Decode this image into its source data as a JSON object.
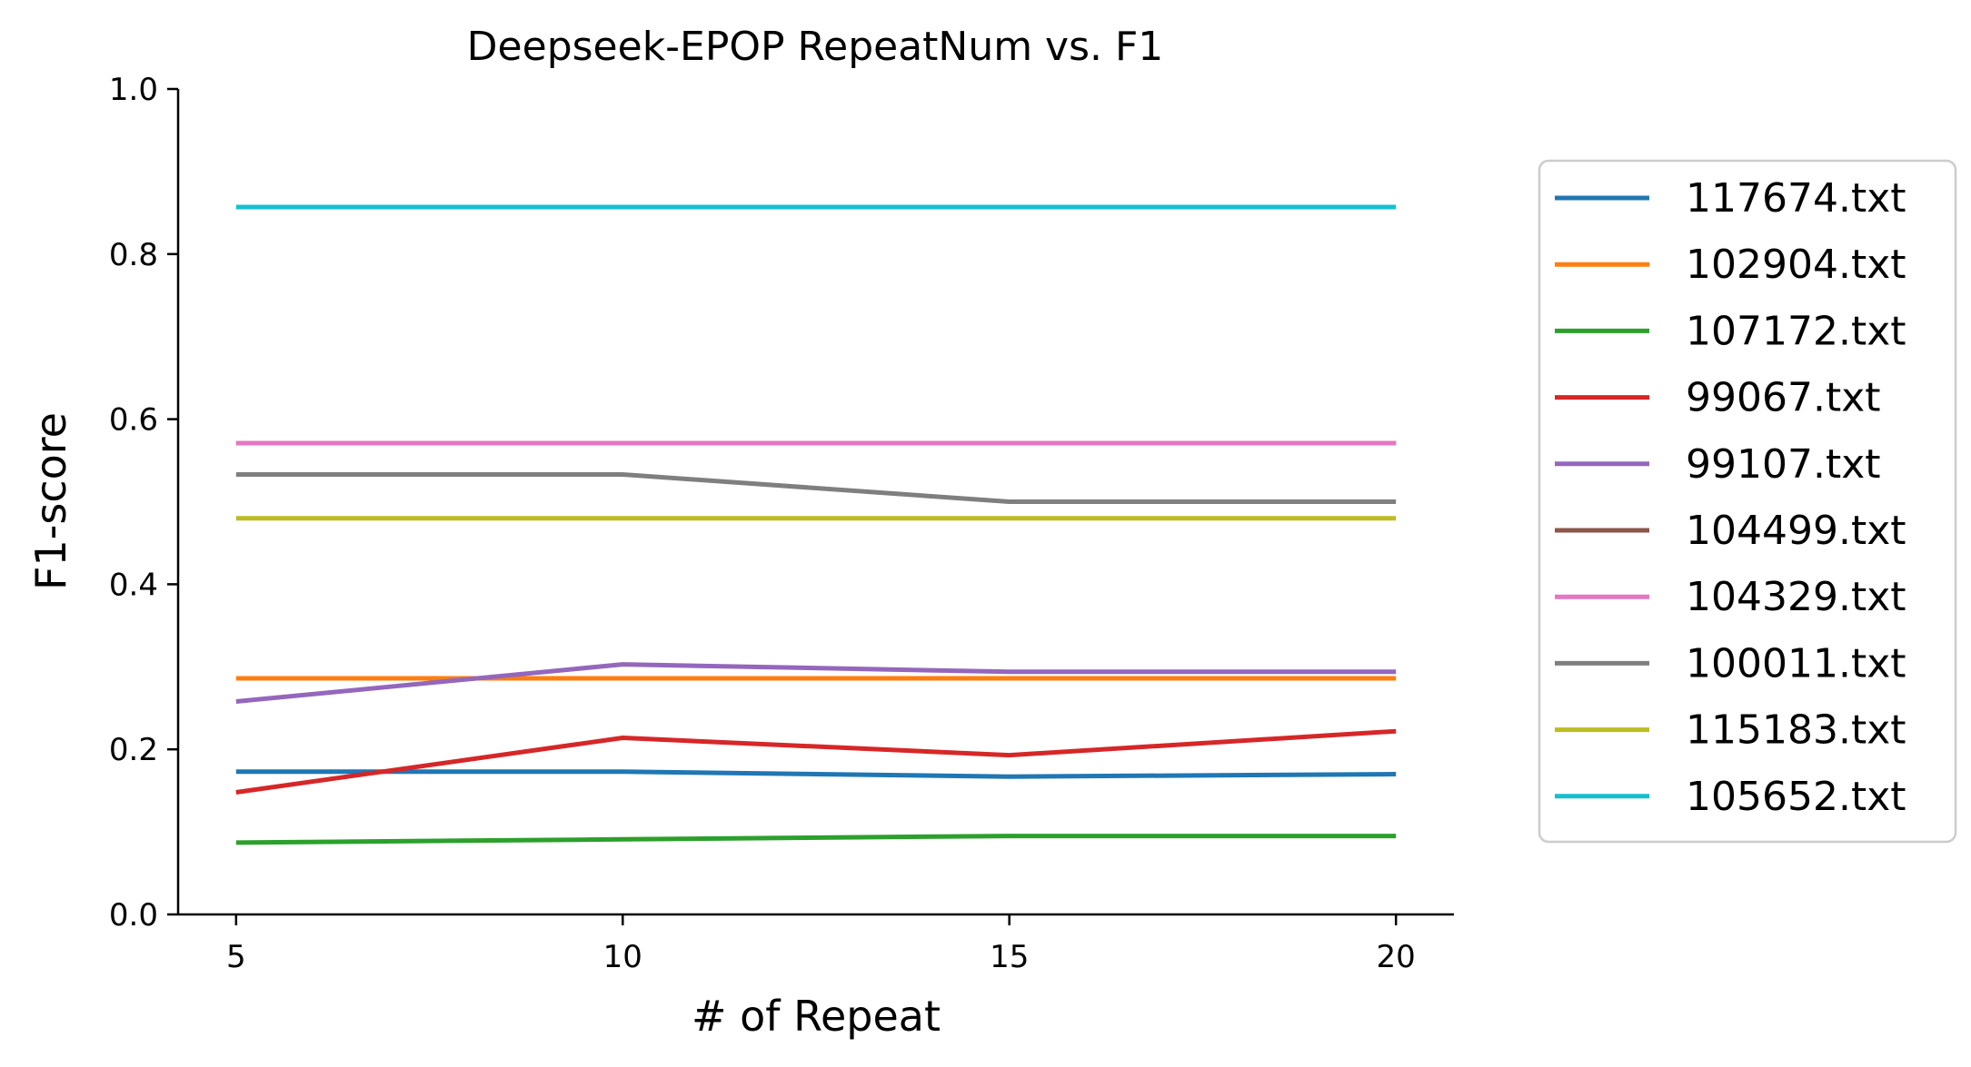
{
  "chart_data": {
    "type": "line",
    "title": "Deepseek-EPOP RepeatNum vs. F1",
    "xlabel": "# of Repeat",
    "ylabel": "F1-score",
    "x": [
      5,
      10,
      15,
      20
    ],
    "xticks": [
      "5",
      "10",
      "15",
      "20"
    ],
    "yticks": [
      "0.0",
      "0.2",
      "0.4",
      "0.6",
      "0.8",
      "1.0"
    ],
    "xlim": [
      4.25,
      20.75
    ],
    "ylim": [
      0,
      1
    ],
    "grid": false,
    "legend_position": "outside-right",
    "series": [
      {
        "name": "117674.txt",
        "color": "#1f77b4",
        "values": [
          0.173,
          0.173,
          0.167,
          0.17
        ]
      },
      {
        "name": "102904.txt",
        "color": "#ff7f0e",
        "values": [
          0.286,
          0.286,
          0.286,
          0.286
        ]
      },
      {
        "name": "107172.txt",
        "color": "#2ca02c",
        "values": [
          0.087,
          0.091,
          0.095,
          0.095
        ]
      },
      {
        "name": "99067.txt",
        "color": "#d62728",
        "values": [
          0.148,
          0.214,
          0.193,
          0.222
        ]
      },
      {
        "name": "99107.txt",
        "color": "#9467bd",
        "values": [
          0.258,
          0.303,
          0.294,
          0.294
        ]
      },
      {
        "name": "104499.txt",
        "color": "#8c564b",
        "values": [
          0.571,
          0.571,
          0.571,
          0.571
        ]
      },
      {
        "name": "104329.txt",
        "color": "#e377c2",
        "values": [
          0.571,
          0.571,
          0.571,
          0.571
        ]
      },
      {
        "name": "100011.txt",
        "color": "#7f7f7f",
        "values": [
          0.533,
          0.533,
          0.5,
          0.5
        ]
      },
      {
        "name": "115183.txt",
        "color": "#bcbd22",
        "values": [
          0.48,
          0.48,
          0.48,
          0.48
        ]
      },
      {
        "name": "105652.txt",
        "color": "#17becf",
        "values": [
          0.857,
          0.857,
          0.857,
          0.857
        ]
      }
    ]
  }
}
